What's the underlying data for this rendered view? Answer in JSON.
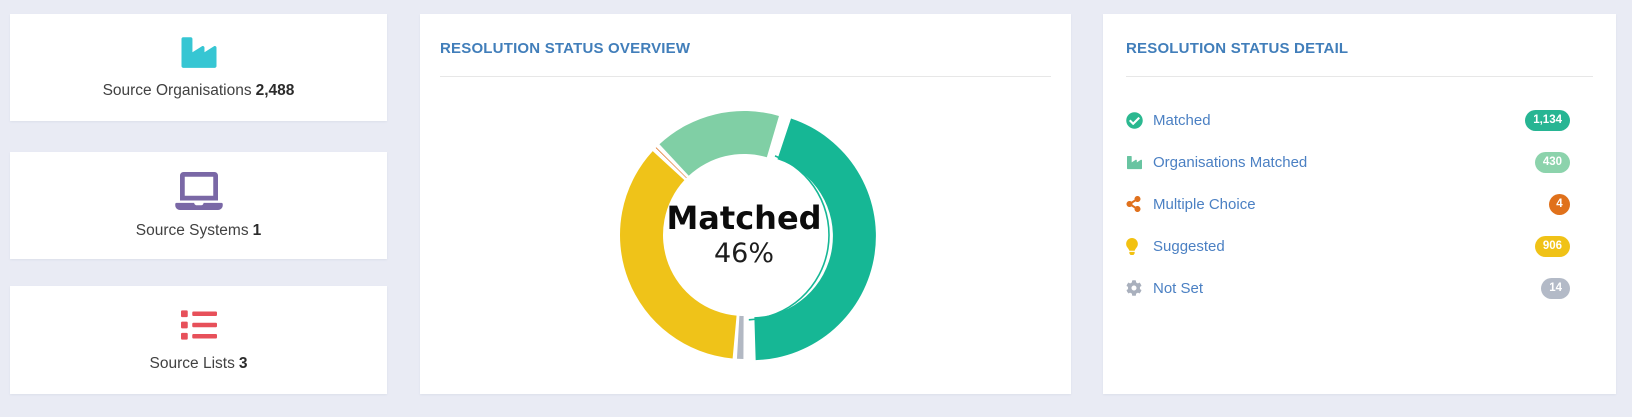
{
  "app": {
    "background": "#e9ebf4"
  },
  "summary_cards": [
    {
      "label": "Source Organisations",
      "value": "2,488",
      "icon": "industry-icon",
      "icon_color": "#36c6d3"
    },
    {
      "label": "Source Systems",
      "value": "1",
      "icon": "laptop-icon",
      "icon_color": "#7a68a6"
    },
    {
      "label": "Source Lists",
      "value": "3",
      "icon": "list-icon",
      "icon_color": "#e7505a"
    }
  ],
  "overview_panel": {
    "title": "RESOLUTION STATUS OVERVIEW"
  },
  "detail_panel": {
    "title": "RESOLUTION STATUS DETAIL",
    "rows": [
      {
        "label": "Matched",
        "count": "1,134",
        "icon": "check-circle-icon",
        "icon_color": "#2bb890",
        "badge_color": "#27b593"
      },
      {
        "label": "Organisations Matched",
        "count": "430",
        "icon": "industry-icon",
        "icon_color": "#68c4a1",
        "badge_color": "#8cd3ac"
      },
      {
        "label": "Multiple Choice",
        "count": "4",
        "icon": "share-icon",
        "icon_color": "#e0711d",
        "badge_color": "#e0711b"
      },
      {
        "label": "Suggested",
        "count": "906",
        "icon": "lightbulb-icon",
        "icon_color": "#f2c111",
        "badge_color": "#f0c217"
      },
      {
        "label": "Not Set",
        "count": "14",
        "icon": "gear-icon",
        "icon_color": "#a9b0bd",
        "badge_color": "#b3bac7"
      }
    ]
  },
  "chart_data": {
    "type": "pie",
    "donut": true,
    "title": "RESOLUTION STATUS OVERVIEW",
    "center_label": "Matched",
    "center_value": "46%",
    "total": 2488,
    "legend_position": "none",
    "segments": [
      {
        "name": "Organisations Matched",
        "value": 430,
        "percent": 17.3,
        "color": "#80cfa5"
      },
      {
        "name": "Matched",
        "value": 1134,
        "percent": 45.6,
        "color": "#16b795",
        "exploded": true
      },
      {
        "name": "Not Set",
        "value": 14,
        "percent": 0.6,
        "color": "#b2b8c3",
        "min_sweep_deg": 5
      },
      {
        "name": "Suggested",
        "value": 906,
        "percent": 36.4,
        "color": "#efc319"
      },
      {
        "name": "Multiple Choice",
        "value": 4,
        "percent": 0.2,
        "color": "#e0711d",
        "min_sweep_deg": 2.4
      }
    ]
  }
}
